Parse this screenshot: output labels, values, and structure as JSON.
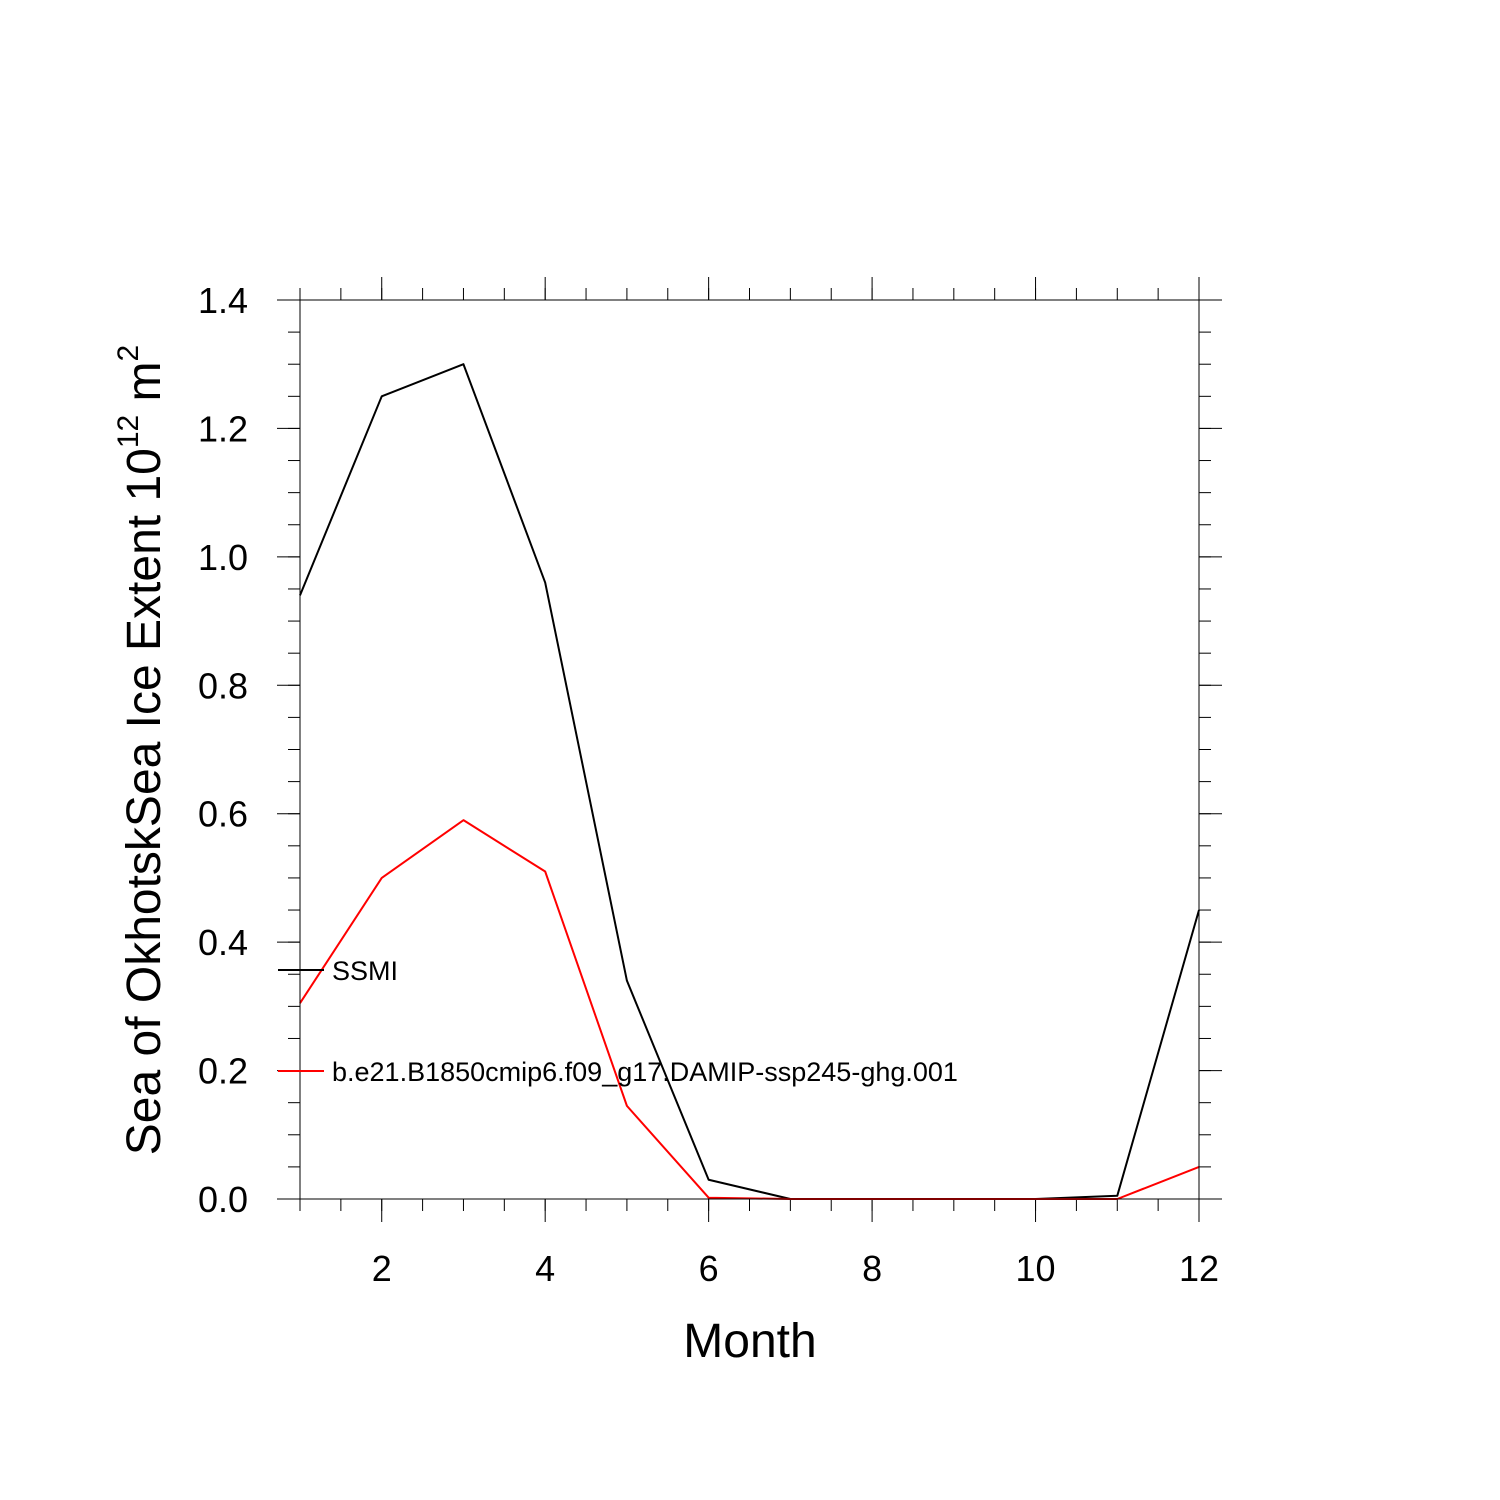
{
  "chart_data": {
    "type": "line",
    "xlabel": "Month",
    "ylabel": "Sea of OkhotskSea Ice Extent 10",
    "ylabel_superscript": "12",
    "ylabel_unit": "m",
    "ylabel_unit_superscript": "2",
    "xlim": [
      1,
      12
    ],
    "ylim": [
      0,
      1.4
    ],
    "x_ticks": [
      2,
      4,
      6,
      8,
      10,
      12
    ],
    "x_tick_labels": [
      "2",
      "4",
      "6",
      "8",
      "10",
      "12"
    ],
    "y_ticks": [
      0,
      0.2,
      0.4,
      0.6,
      0.8,
      1.0,
      1.2,
      1.4
    ],
    "y_tick_labels": [
      "0.0",
      "0.2",
      "0.4",
      "0.6",
      "0.8",
      "1.0",
      "1.2",
      "1.4"
    ],
    "grid": false,
    "legend_position": "left-middle",
    "x": [
      1,
      2,
      3,
      4,
      5,
      6,
      7,
      8,
      9,
      10,
      11,
      12
    ],
    "series": [
      {
        "name": "SSMI",
        "color": "#000000",
        "values": [
          0.94,
          1.25,
          1.3,
          0.96,
          0.34,
          0.03,
          0.0,
          0.0,
          0.0,
          0.0,
          0.005,
          0.45
        ]
      },
      {
        "name": "b.e21.B1850cmip6.f09_g17.DAMIP-ssp245-ghg.001",
        "color": "#ff0000",
        "values": [
          0.305,
          0.5,
          0.59,
          0.51,
          0.145,
          0.002,
          0.0,
          0.0,
          0.0,
          0.0,
          0.0,
          0.05
        ]
      }
    ]
  }
}
